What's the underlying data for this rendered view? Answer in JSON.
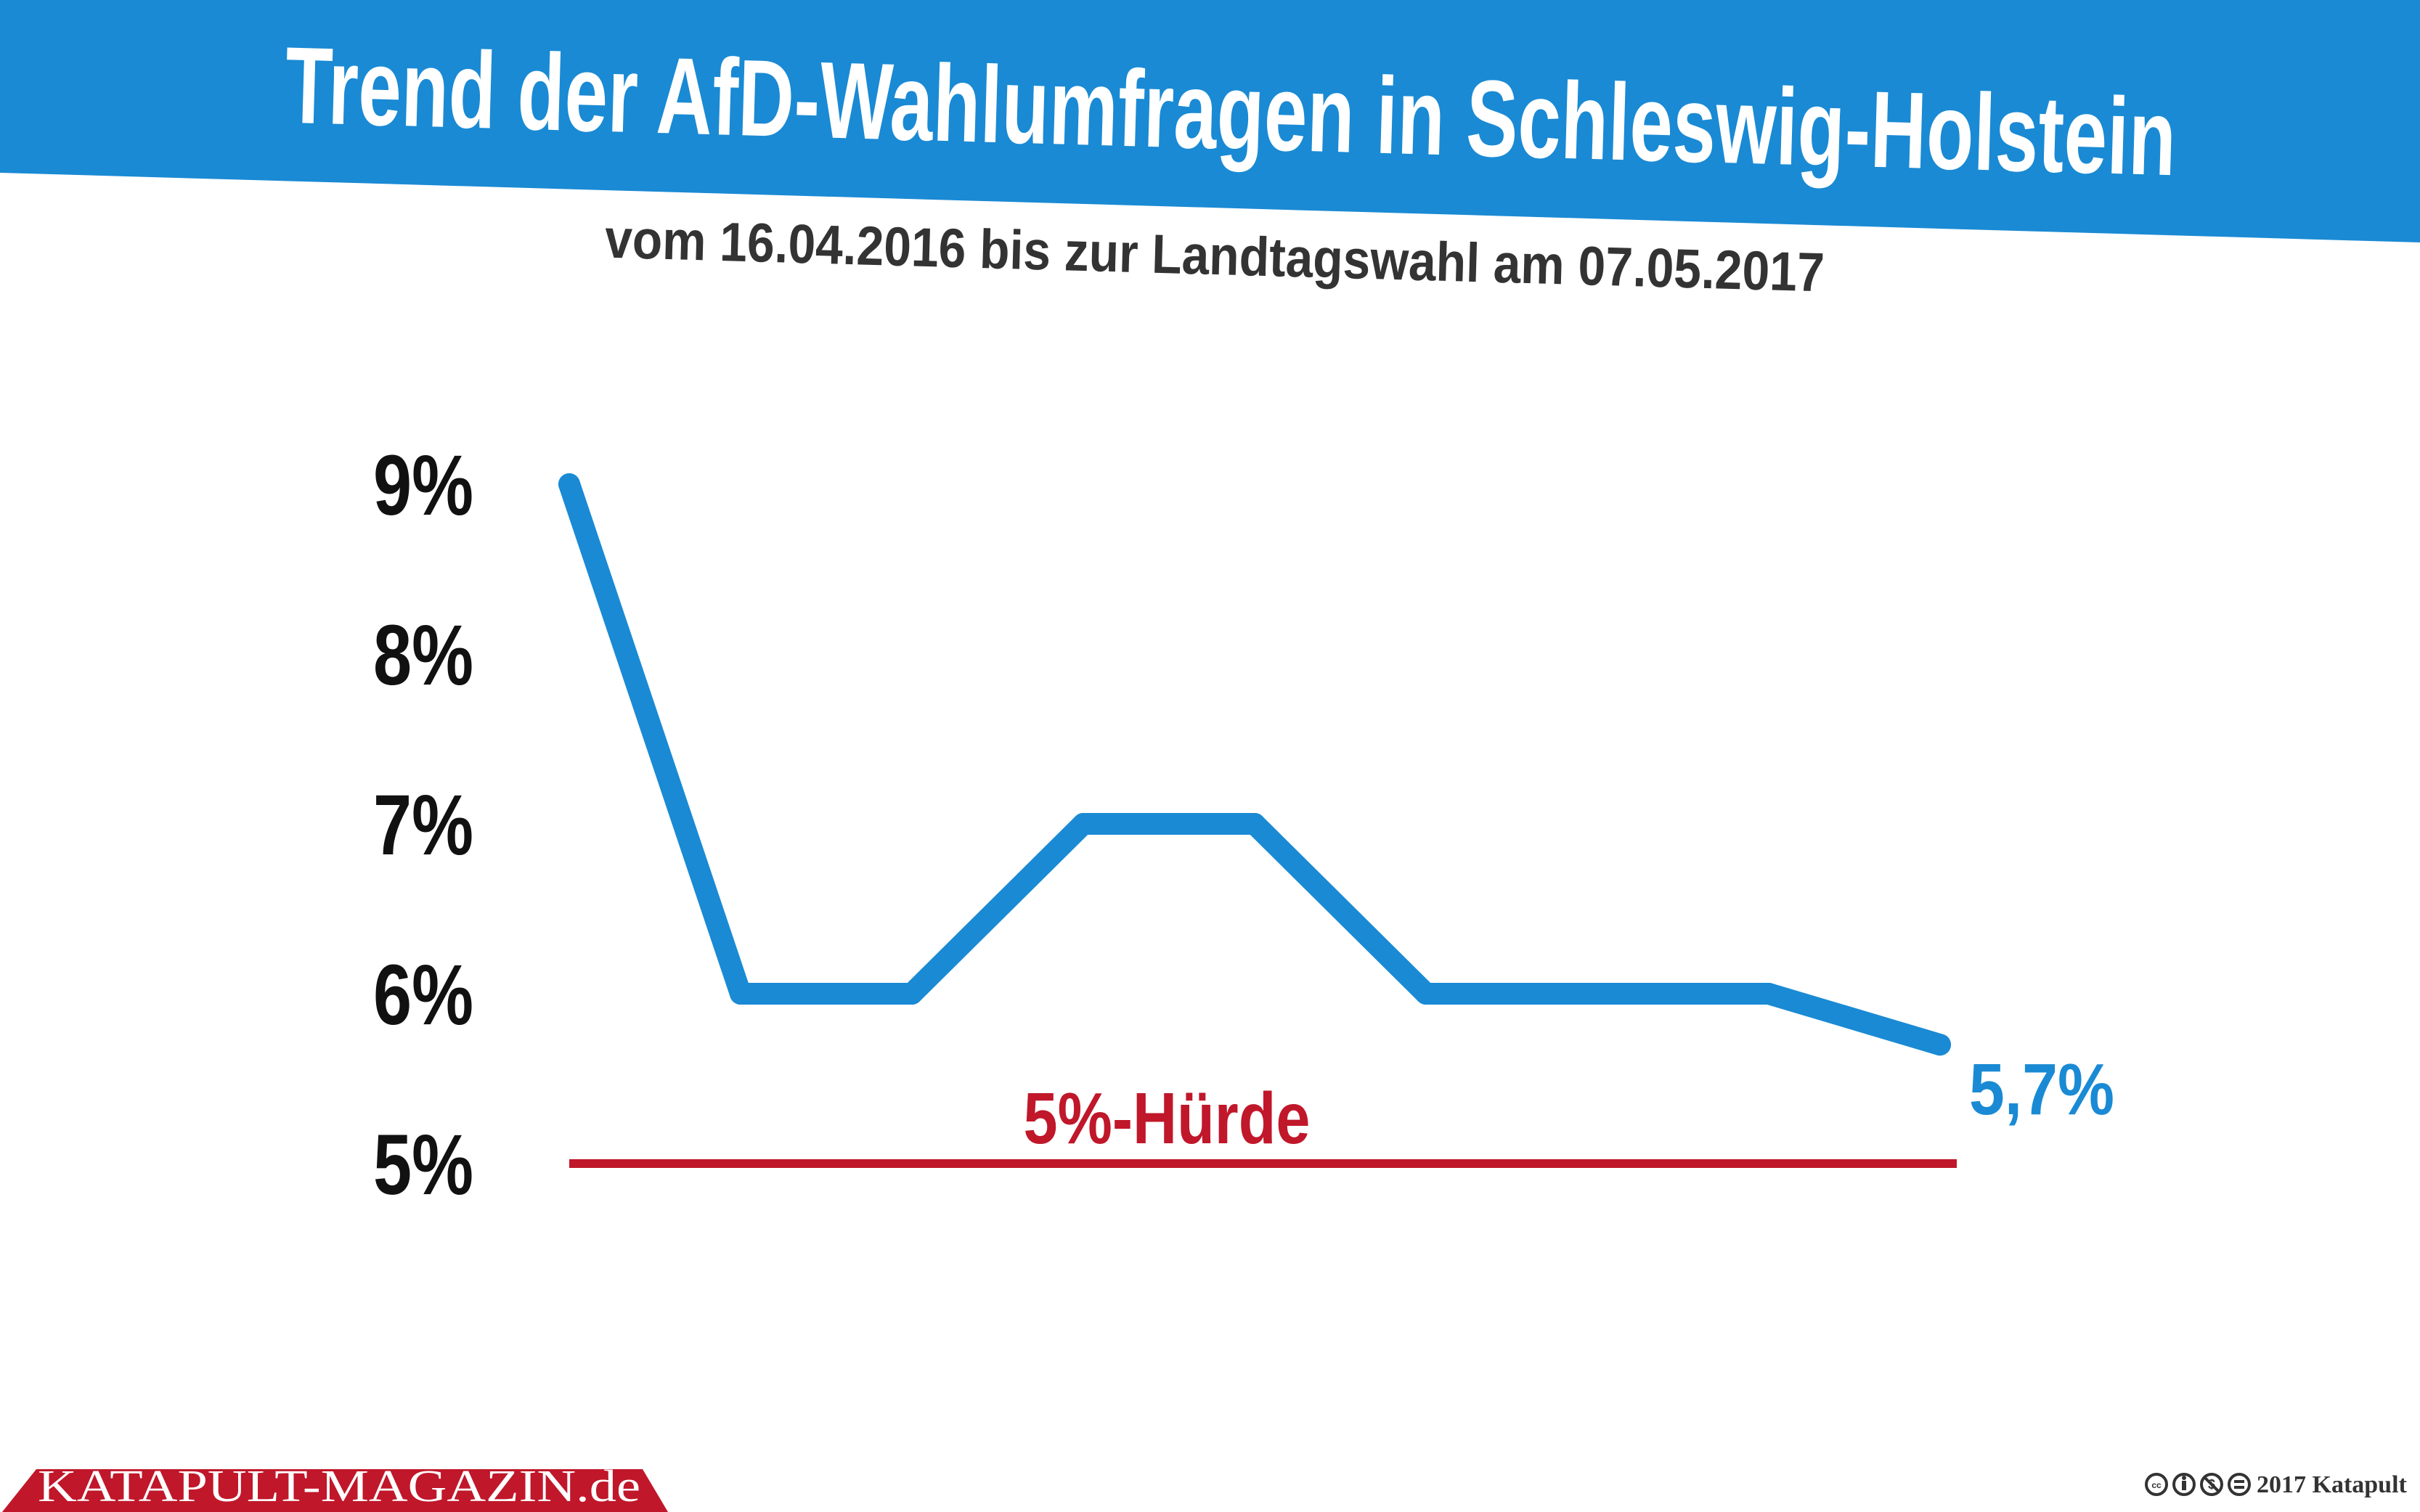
{
  "header": {
    "title": "Trend der AfD-Wahlumfragen in Schleswig-Holstein",
    "subtitle": "vom 16.04.2016 bis zur Landtagswahl am 07.05.2017"
  },
  "colors": {
    "blue": "#1a8ad4",
    "red": "#c0172a",
    "dark": "#333333"
  },
  "chart_data": {
    "type": "line",
    "title": "Trend der AfD-Wahlumfragen in Schleswig-Holstein",
    "subtitle": "vom 16.04.2016 bis zur Landtagswahl am 07.05.2017",
    "xlabel": "",
    "ylabel": "",
    "ylim": [
      5,
      9
    ],
    "y_ticks": [
      "9%",
      "8%",
      "7%",
      "6%",
      "5%"
    ],
    "y_tick_values": [
      9,
      8,
      7,
      6,
      5
    ],
    "grid": false,
    "series": [
      {
        "name": "AfD",
        "values": [
          9,
          6,
          6,
          7,
          7,
          6,
          6,
          6,
          5.7
        ]
      }
    ],
    "end_label": "5,7%",
    "threshold": {
      "value": 5,
      "label": "5%-Hürde"
    }
  },
  "footer": {
    "brand": "KATAPULT-MAGAZIN.de",
    "copyright": "2017 Katapult",
    "license_icons": [
      "cc-icon",
      "by-icon",
      "nc-icon",
      "nd-icon"
    ]
  }
}
